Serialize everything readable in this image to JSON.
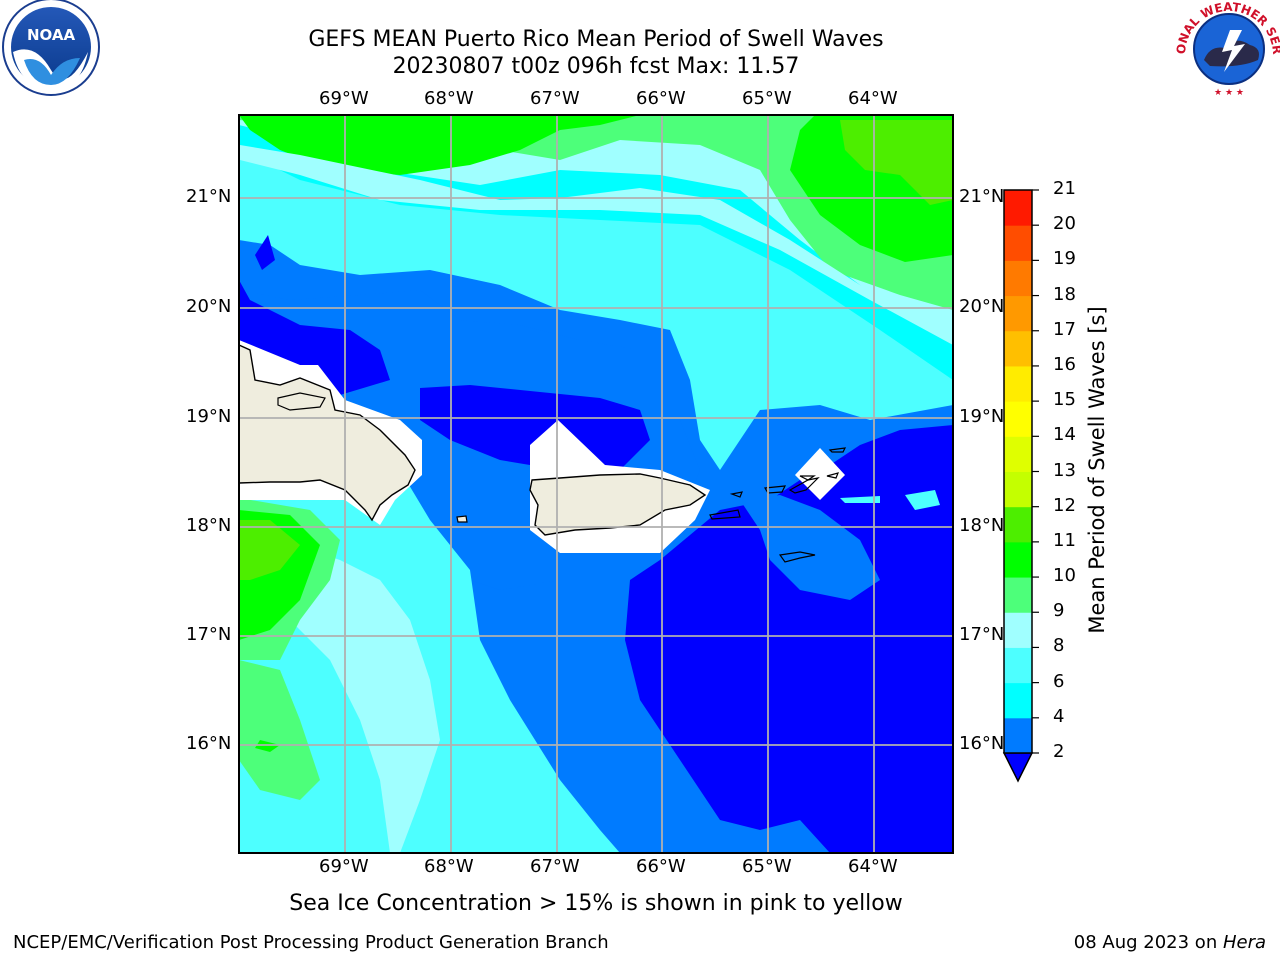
{
  "title_line1": "GEFS MEAN Puerto Rico Mean Period of Swell Waves",
  "title_line2": "20230807 t00z 096h fcst   Max: 11.57",
  "footer_left": "NCEP/EMC/Verification Post Processing Product Generation Branch",
  "footer_right_date": "08 Aug 2023 on ",
  "footer_right_host": "Hera",
  "sea_ice_note": "Sea Ice Concentration > 15% is shown in pink to yellow",
  "colorbar": {
    "label": "Mean Period of Swell Waves [s]",
    "ticks": [
      "2",
      "4",
      "6",
      "8",
      "9",
      "10",
      "11",
      "12",
      "13",
      "14",
      "15",
      "16",
      "17",
      "18",
      "19",
      "20",
      "21"
    ],
    "colors": [
      "#007bff",
      "#00ffff",
      "#4dffff",
      "#a0ffff",
      "#4dff7a",
      "#00ff00",
      "#4dee00",
      "#c4ff00",
      "#dfff00",
      "#ffff00",
      "#ffec00",
      "#ffbf00",
      "#ff9900",
      "#ff7a00",
      "#ff4d00",
      "#ff1a00"
    ],
    "under_color": "#0000ff"
  },
  "map": {
    "lon_labels": [
      "69°W",
      "68°W",
      "67°W",
      "66°W",
      "65°W",
      "64°W"
    ],
    "lat_labels": [
      "21°N",
      "20°N",
      "19°N",
      "18°N",
      "17°N",
      "16°N"
    ],
    "land_color": "#efedde",
    "logos": [
      {
        "icon": "noaa-logo-icon",
        "text": "NOAA"
      },
      {
        "icon": "nws-logo-icon",
        "text": "NATIONAL WEATHER SERVICE"
      }
    ]
  }
}
